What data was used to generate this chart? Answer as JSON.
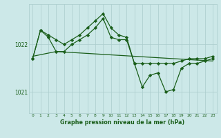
{
  "title": "Graphe pression niveau de la mer (hPa)",
  "bg_color": "#cce8e8",
  "plot_bg_color": "#cce8e8",
  "grid_color": "#aacccc",
  "line_color": "#1a5e1a",
  "marker_color": "#1a5e1a",
  "ylim": [
    1020.55,
    1022.85
  ],
  "yticks": [
    1021,
    1022
  ],
  "xlim": [
    -0.5,
    23.5
  ],
  "xticks": [
    0,
    1,
    2,
    3,
    4,
    5,
    6,
    7,
    8,
    9,
    10,
    11,
    12,
    13,
    14,
    15,
    16,
    17,
    18,
    19,
    20,
    21,
    22,
    23
  ],
  "series1_x": [
    0,
    1,
    2,
    3,
    4,
    5,
    6,
    7,
    8,
    9,
    10,
    11,
    12,
    13,
    14,
    15,
    16,
    17,
    18,
    19,
    20,
    21,
    22,
    23
  ],
  "series1_y": [
    1021.7,
    1022.3,
    1022.2,
    1022.1,
    1022.0,
    1022.1,
    1022.2,
    1022.35,
    1022.5,
    1022.65,
    1022.35,
    1022.2,
    1022.15,
    1021.6,
    1021.1,
    1021.35,
    1021.4,
    1021.0,
    1021.05,
    1021.5,
    1021.6,
    1021.6,
    1021.65,
    1021.7
  ],
  "series2_x": [
    0,
    1,
    2,
    3,
    4,
    5,
    6,
    7,
    8,
    9,
    10,
    11,
    12,
    13,
    14,
    15,
    16,
    17,
    18,
    19,
    20,
    21,
    22,
    23
  ],
  "series2_y": [
    1021.7,
    1022.3,
    1022.15,
    1021.85,
    1021.85,
    1022.0,
    1022.1,
    1022.2,
    1022.35,
    1022.55,
    1022.15,
    1022.1,
    1022.1,
    1021.6,
    1021.6,
    1021.6,
    1021.6,
    1021.6,
    1021.6,
    1021.65,
    1021.7,
    1021.7,
    1021.7,
    1021.75
  ],
  "series3_x": [
    0,
    3,
    23
  ],
  "series3_y": [
    1021.75,
    1021.85,
    1021.65
  ]
}
